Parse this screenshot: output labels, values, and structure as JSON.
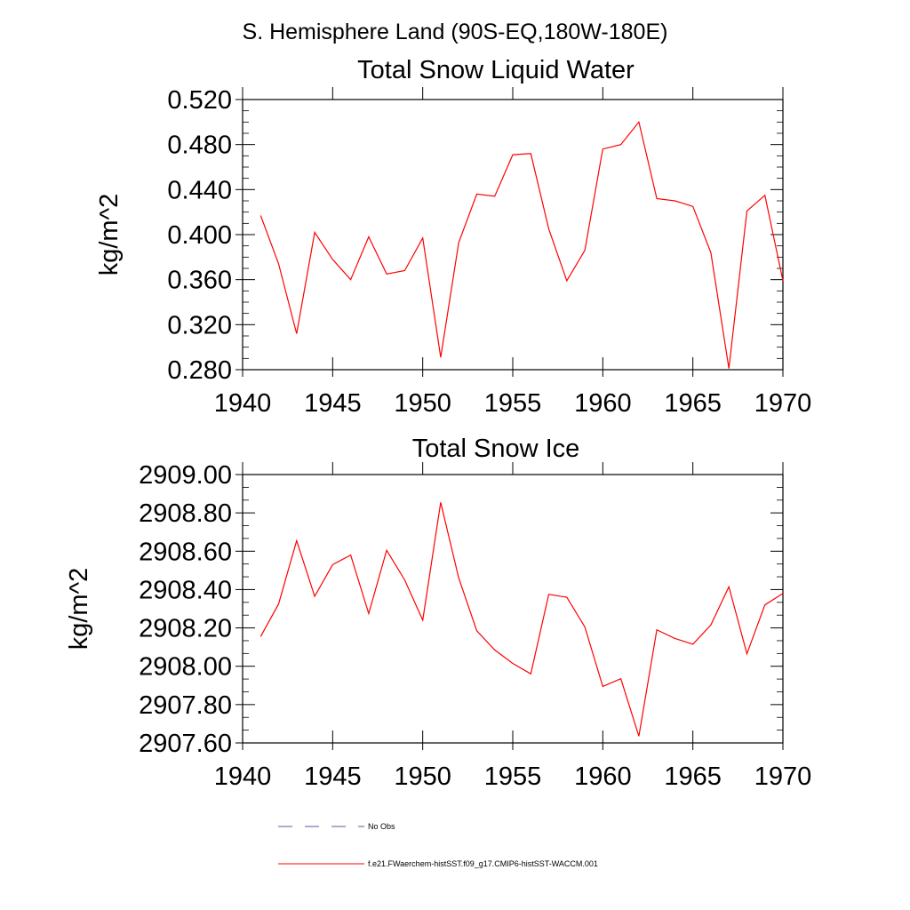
{
  "page_title": "S. Hemisphere Land (90S-EQ,180W-180E)",
  "chart_data": [
    {
      "type": "line",
      "title": "Total Snow Liquid Water",
      "xlabel": "",
      "ylabel": "kg/m^2",
      "xlim": [
        1940,
        1970
      ],
      "ylim": [
        0.28,
        0.52
      ],
      "xticks": [
        "1940",
        "1945",
        "1950",
        "1955",
        "1960",
        "1965",
        "1970"
      ],
      "yticks": [
        "0.280",
        "0.320",
        "0.360",
        "0.400",
        "0.440",
        "0.480",
        "0.520"
      ],
      "grid": false,
      "series": [
        {
          "name": "f.e21.FWaerchem-histSST.f09_g17.CMIP6-histSST-WACCM.001",
          "color": "#ff0000",
          "x": [
            1941,
            1942,
            1943,
            1944,
            1945,
            1946,
            1947,
            1948,
            1949,
            1950,
            1951,
            1952,
            1953,
            1954,
            1955,
            1956,
            1957,
            1958,
            1959,
            1960,
            1961,
            1962,
            1963,
            1964,
            1965,
            1966,
            1967,
            1968,
            1969,
            1970
          ],
          "y": [
            0.417,
            0.374,
            0.312,
            0.402,
            0.378,
            0.36,
            0.398,
            0.365,
            0.368,
            0.397,
            0.291,
            0.393,
            0.436,
            0.434,
            0.471,
            0.472,
            0.405,
            0.359,
            0.386,
            0.476,
            0.48,
            0.5,
            0.432,
            0.43,
            0.425,
            0.384,
            0.281,
            0.421,
            0.435,
            0.359
          ]
        }
      ]
    },
    {
      "type": "line",
      "title": "Total Snow Ice",
      "xlabel": "",
      "ylabel": "kg/m^2",
      "xlim": [
        1940,
        1970
      ],
      "ylim": [
        2907.6,
        2909.0
      ],
      "xticks": [
        "1940",
        "1945",
        "1950",
        "1955",
        "1960",
        "1965",
        "1970"
      ],
      "yticks": [
        "2907.60",
        "2907.80",
        "2908.00",
        "2908.20",
        "2908.40",
        "2908.60",
        "2908.80",
        "2909.00"
      ],
      "grid": false,
      "series": [
        {
          "name": "f.e21.FWaerchem-histSST.f09_g17.CMIP6-histSST-WACCM.001",
          "color": "#ff0000",
          "x": [
            1941,
            1942,
            1943,
            1944,
            1945,
            1946,
            1947,
            1948,
            1949,
            1950,
            1951,
            1952,
            1953,
            1954,
            1955,
            1956,
            1957,
            1958,
            1959,
            1960,
            1961,
            1962,
            1963,
            1964,
            1965,
            1966,
            1967,
            1968,
            1969,
            1970
          ],
          "y": [
            2908.155,
            2908.325,
            2908.655,
            2908.365,
            2908.53,
            2908.58,
            2908.275,
            2908.605,
            2908.45,
            2908.24,
            2908.855,
            2908.46,
            2908.185,
            2908.085,
            2908.015,
            2907.96,
            2908.375,
            2908.36,
            2908.205,
            2907.895,
            2907.935,
            2907.635,
            2908.19,
            2908.145,
            2908.115,
            2908.215,
            2908.415,
            2908.065,
            2908.32,
            2908.38
          ]
        }
      ]
    }
  ],
  "legend": {
    "placement": "bottom",
    "entries": [
      {
        "label": "No Obs",
        "color": "#5a5a9a",
        "style": "dashed"
      },
      {
        "label": "f.e21.FWaerchem-histSST.f09_g17.CMIP6-histSST-WACCM.001",
        "color": "#ff0000",
        "style": "solid"
      }
    ]
  }
}
